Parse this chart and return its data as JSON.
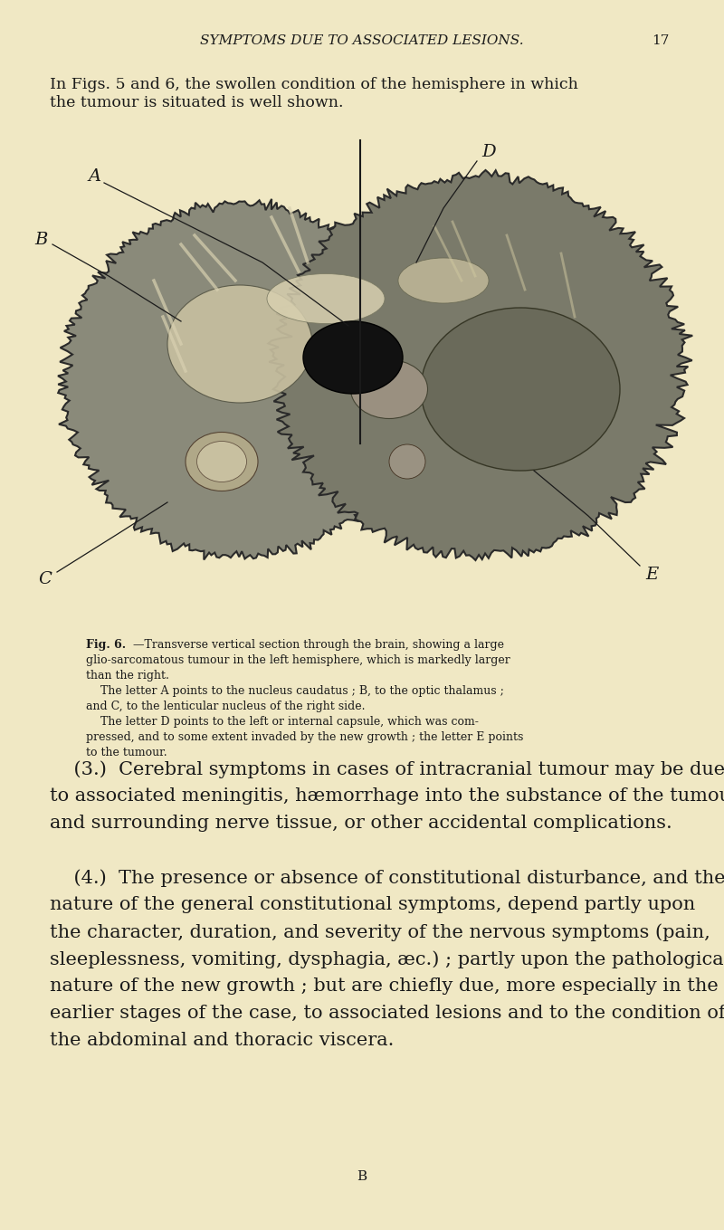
{
  "background_color": "#f0e8c4",
  "text_color": "#1a1a1a",
  "header_text": "SYMPTOMS DUE TO ASSOCIATED LESIONS.",
  "header_page_num": "17",
  "intro_line1": "In Figs. 5 and 6, the swollen condition of the hemisphere in which",
  "intro_line2": "the tumour is situated is well shown.",
  "caption_bold": "Fig. 6.",
  "caption_line1": "—Transverse vertical section through the brain, showing a large",
  "caption_line2": "glio-sarcomatous tumour in the left hemisphere, which is markedly larger",
  "caption_line3": "than the right.",
  "caption_line4": "    The letter A points to the nucleus caudatus ; B, to the optic thalamus ;",
  "caption_line5": "and C, to the lenticular nucleus of the right side.",
  "caption_line6": "    The letter D points to the left or internal capsule, which was com-",
  "caption_line7": "pressed, and to some extent invaded by the new growth ; the letter E points",
  "caption_line8": "to the tumour.",
  "para3_line1": "    (3.)  Cerebral symptoms in cases of intracranial tumour may be due",
  "para3_line2": "to associated meningitis, hæmorrhage into the substance of the tumour",
  "para3_line3": "and surrounding nerve tissue, or other accidental complications.",
  "para4_line1": "    (4.)  The presence or absence of constitutional disturbance, and the",
  "para4_line2": "nature of the general constitutional symptoms, depend partly upon",
  "para4_line3": "the character, duration, and severity of the nervous symptoms (pain,",
  "para4_line4": "sleeplessness, vomiting, dysphagia, æc.) ; partly upon the pathological",
  "para4_line5": "nature of the new growth ; but are chiefly due, more especially in the",
  "para4_line6": "earlier stages of the case, to associated lesions and to the condition of",
  "para4_line7": "the abdominal and thoracic viscera.",
  "footer_text": "B",
  "label_A": "A",
  "label_B": "B",
  "label_C": "C",
  "label_D": "D",
  "label_E": "E"
}
